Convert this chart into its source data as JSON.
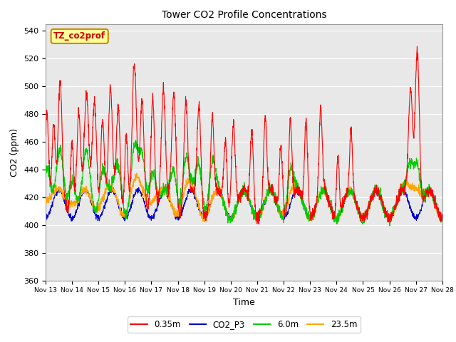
{
  "title": "Tower CO2 Profile Concentrations",
  "xlabel": "Time",
  "ylabel": "CO2 (ppm)",
  "ylim": [
    360,
    545
  ],
  "yticks": [
    360,
    380,
    400,
    420,
    440,
    460,
    480,
    500,
    520,
    540
  ],
  "xtick_labels": [
    "Nov 13",
    "Nov 14",
    "Nov 15",
    "Nov 16",
    "Nov 17",
    "Nov 18",
    "Nov 19",
    "Nov 20",
    "Nov 21",
    "Nov 22",
    "Nov 23",
    "Nov 24",
    "Nov 25",
    "Nov 26",
    "Nov 27",
    "Nov 28"
  ],
  "series_colors": {
    "0.35m": "#ff0000",
    "CO2_P3": "#0000cc",
    "6.0m": "#00cc00",
    "23.5m": "#ffa500"
  },
  "legend_label": "TZ_co2prof",
  "legend_label_bg": "#ffff99",
  "legend_label_border": "#cc8800",
  "plot_bg": "#e8e8e8",
  "n_days": 15,
  "pts_per_day": 144,
  "figsize": [
    6.4,
    4.8
  ],
  "dpi": 100
}
